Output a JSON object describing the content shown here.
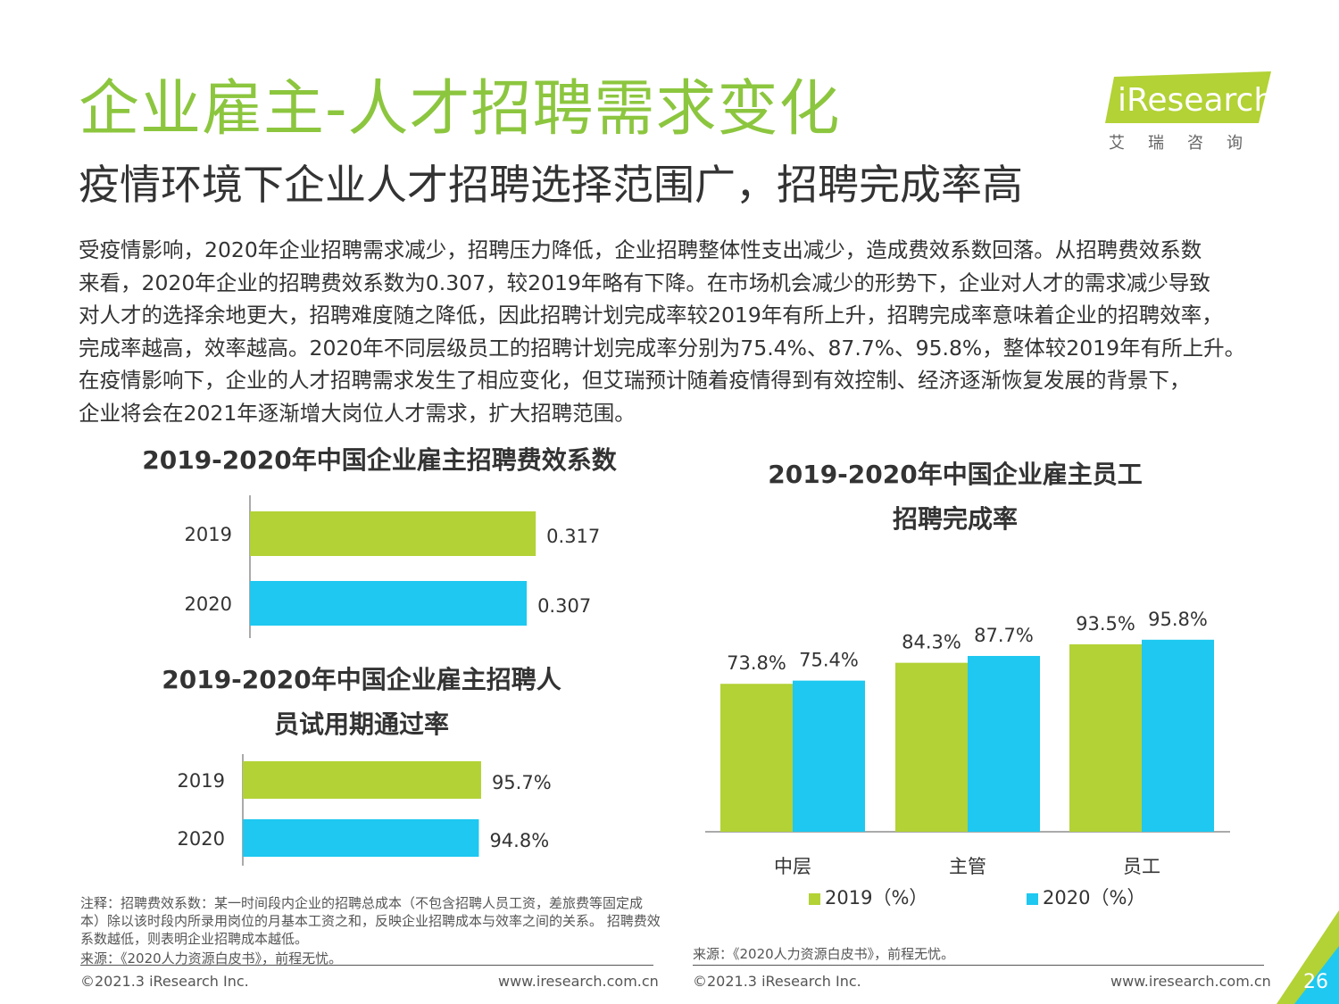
{
  "header": {
    "title": "企业雇主-人才招聘需求变化",
    "subtitle": "疫情环境下企业人才招聘选择范围广，招聘完成率高",
    "logo_text": "iResearch",
    "logo_sub": "艾瑞咨询"
  },
  "body_lines": [
    "受疫情影响，2020年企业招聘需求减少，招聘压力降低，企业招聘整体性支出减少，造成费效系数回落。从招聘费效系数",
    "来看，2020年企业的招聘费效系数为0.307，较2019年略有下降。在市场机会减少的形势下，企业对人才的需求减少导致",
    "对人才的选择余地更大，招聘难度随之降低，因此招聘计划完成率较2019年有所上升，招聘完成率意味着企业的招聘效率，",
    "完成率越高，效率越高。2020年不同层级员工的招聘计划完成率分别为75.4%、87.7%、95.8%，整体较2019年有所上升。",
    "在疫情影响下，企业的人才招聘需求发生了相应变化，但艾瑞预计随着疫情得到有效控制、经济逐渐恢复发展的背景下，",
    "企业将会在2021年逐渐增大岗位人才需求，扩大招聘范围。"
  ],
  "chart_data": [
    {
      "type": "bar",
      "orientation": "horizontal",
      "title": "2019-2020年中国企业雇主招聘费效系数",
      "categories": [
        "2019",
        "2020"
      ],
      "values": [
        0.317,
        0.307
      ],
      "labels": [
        "0.317",
        "0.307"
      ],
      "colors": [
        "#b2d235",
        "#1ec8f0"
      ],
      "xlim": [
        0,
        0.5
      ]
    },
    {
      "type": "bar",
      "orientation": "horizontal",
      "title_lines": [
        "2019-2020年中国企业雇主招聘人",
        "员试用期通过率"
      ],
      "categories": [
        "2019",
        "2020"
      ],
      "values": [
        95.7,
        94.8
      ],
      "labels": [
        "95.7%",
        "94.8%"
      ],
      "colors": [
        "#b2d235",
        "#1ec8f0"
      ],
      "xlim": [
        0,
        190
      ]
    },
    {
      "type": "bar",
      "orientation": "vertical",
      "title_lines": [
        "2019-2020年中国企业雇主员工",
        "招聘完成率"
      ],
      "categories": [
        "中层",
        "主管",
        "员工"
      ],
      "series": [
        {
          "name": "2019（%）",
          "values": [
            73.8,
            84.3,
            93.5
          ],
          "labels": [
            "73.8%",
            "84.3%",
            "93.5%"
          ],
          "color": "#b2d235"
        },
        {
          "name": "2020（%）",
          "values": [
            75.4,
            87.7,
            95.8
          ],
          "labels": [
            "75.4%",
            "87.7%",
            "95.8%"
          ],
          "color": "#1ec8f0"
        }
      ],
      "ylim": [
        0,
        130
      ],
      "legend": "bottom"
    }
  ],
  "notes": {
    "left_note": "注释：招聘费效系数：某一时间段内企业的招聘总成本（不包含招聘人员工资，差旅费等固定成本）除以该时段内所录用岗位的月基本工资之和，反映企业招聘成本与效率之间的关系。 招聘费效系数越低，则表明企业招聘成本越低。",
    "left_source": "来源：《2020人力资源白皮书》，前程无忧。",
    "right_source": "来源：《2020人力资源白皮书》，前程无忧。"
  },
  "footer": {
    "copyright_left": "©2021.3 iResearch Inc.",
    "url_left": "www.iresearch.com.cn",
    "copyright_right": "©2021.3 iResearch Inc.",
    "url_right": "www.iresearch.com.cn",
    "page_number": "26"
  }
}
